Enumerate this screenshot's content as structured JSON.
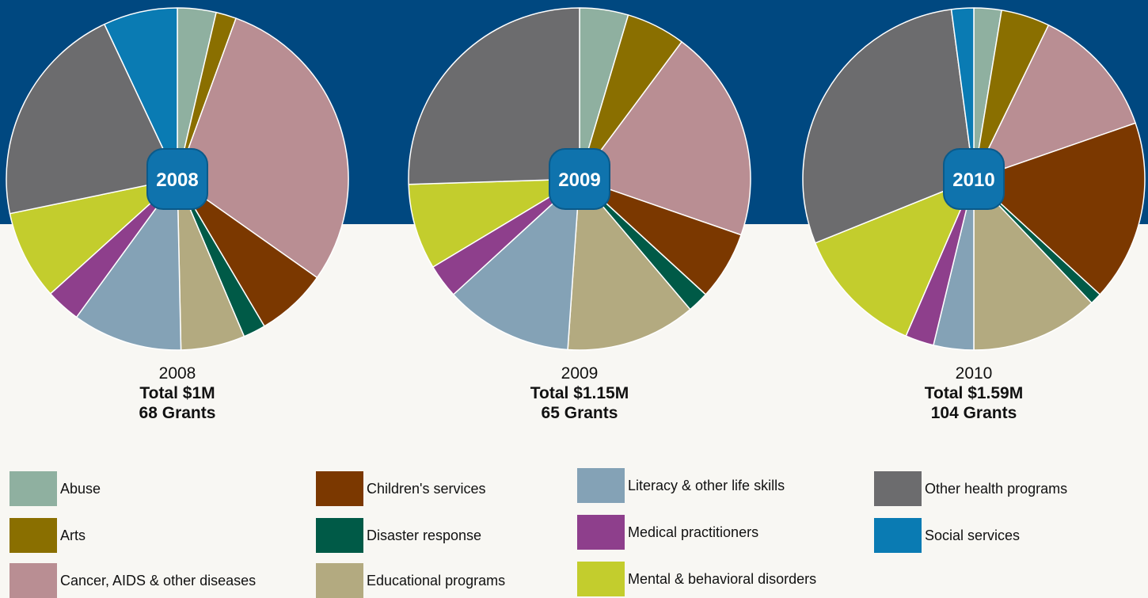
{
  "categories": [
    "Abuse",
    "Arts",
    "Cancer, AIDS & other diseases",
    "Children's services",
    "Disaster response",
    "Educational programs",
    "Literacy & other life skills",
    "Medical practitioners",
    "Mental & behavioral disorders",
    "Other health programs",
    "Social services"
  ],
  "colors": [
    "#8fb0a0",
    "#8a6f00",
    "#b98e93",
    "#7b3800",
    "#005a47",
    "#b3aa80",
    "#84a2b6",
    "#8e3f8c",
    "#c3cd2d",
    "#6c6c6e",
    "#0a7bb3"
  ],
  "chart_data": [
    {
      "type": "pie",
      "badge": "2008",
      "year": "2008",
      "total": "Total $1M",
      "grants": "68 Grants",
      "values": [
        3.8,
        2.0,
        30.4,
        7.0,
        2.2,
        6.3,
        10.8,
        3.4,
        8.8,
        22.1,
        7.3
      ]
    },
    {
      "type": "pie",
      "badge": "2009",
      "year": "2009",
      "total": "Total $1.15M",
      "grants": "65 Grants",
      "values": [
        4.6,
        5.6,
        20.1,
        6.5,
        2.0,
        12.3,
        12.1,
        3.2,
        8.1,
        25.5,
        0
      ]
    },
    {
      "type": "pie",
      "badge": "2010",
      "year": "2010",
      "total": "Total $1.59M",
      "grants": "104 Grants",
      "values": [
        2.6,
        4.6,
        12.5,
        17.1,
        1.1,
        12.1,
        3.8,
        2.7,
        12.4,
        29.0,
        2.1
      ]
    }
  ]
}
